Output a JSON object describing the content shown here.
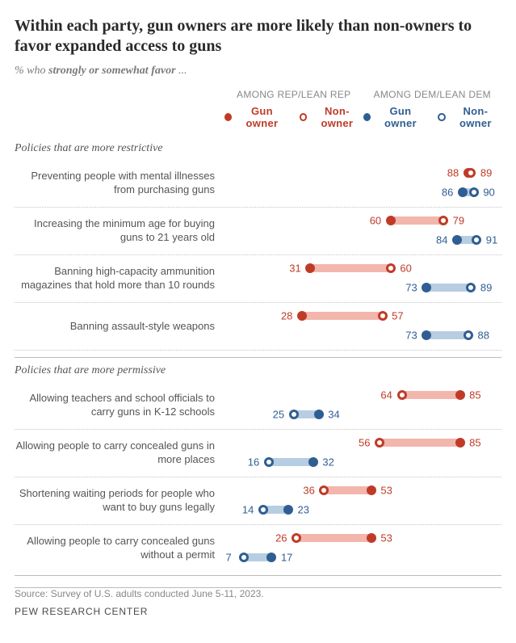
{
  "title": "Within each party, gun owners are more likely than non-owners to favor expanded access to guns",
  "subtitle_prefix": "% who ",
  "subtitle_strong": "strongly or somewhat favor",
  "subtitle_suffix": " ...",
  "legend": {
    "rep_header": "AMONG REP/LEAN REP",
    "dem_header": "AMONG DEM/LEAN DEM",
    "owner": "Gun owner",
    "nonowner": "Non-owner"
  },
  "colors": {
    "rep_fill": "#bf3b27",
    "rep_track": "#f3b6ad",
    "dem_fill": "#2f5e93",
    "dem_track": "#b7cde2",
    "label_rep": "#bf3b27",
    "label_dem": "#2f5e93"
  },
  "scale": {
    "min": 0,
    "max": 100
  },
  "sections": [
    {
      "title": "Policies that are more restrictive",
      "rows": [
        {
          "label": "Preventing people with mental illnesses from purchasing guns",
          "rep_owner": 88,
          "rep_non": 89,
          "dem_owner": 86,
          "dem_non": 90
        },
        {
          "label": "Increasing the minimum age for buying guns to 21 years old",
          "rep_owner": 60,
          "rep_non": 79,
          "dem_owner": 84,
          "dem_non": 91
        },
        {
          "label": "Banning high-capacity ammunition magazines that hold more than 10 rounds",
          "rep_owner": 31,
          "rep_non": 60,
          "dem_owner": 73,
          "dem_non": 89
        },
        {
          "label": "Banning assault-style weapons",
          "rep_owner": 28,
          "rep_non": 57,
          "dem_owner": 73,
          "dem_non": 88
        }
      ]
    },
    {
      "title": "Policies that are more permissive",
      "rows": [
        {
          "label": "Allowing teachers and school officials to carry guns in K-12 schools",
          "rep_owner": 85,
          "rep_non": 64,
          "dem_owner": 34,
          "dem_non": 25
        },
        {
          "label": "Allowing people to carry concealed guns in more places",
          "rep_owner": 85,
          "rep_non": 56,
          "dem_owner": 32,
          "dem_non": 16
        },
        {
          "label": "Shortening waiting periods for people who want to buy guns legally",
          "rep_owner": 53,
          "rep_non": 36,
          "dem_owner": 23,
          "dem_non": 14
        },
        {
          "label": "Allowing people to carry concealed guns without a permit",
          "rep_owner": 53,
          "rep_non": 26,
          "dem_owner": 17,
          "dem_non": 7
        }
      ]
    }
  ],
  "source": "Source: Survey of U.S. adults conducted June 5-11, 2023.",
  "footer": "PEW RESEARCH CENTER"
}
